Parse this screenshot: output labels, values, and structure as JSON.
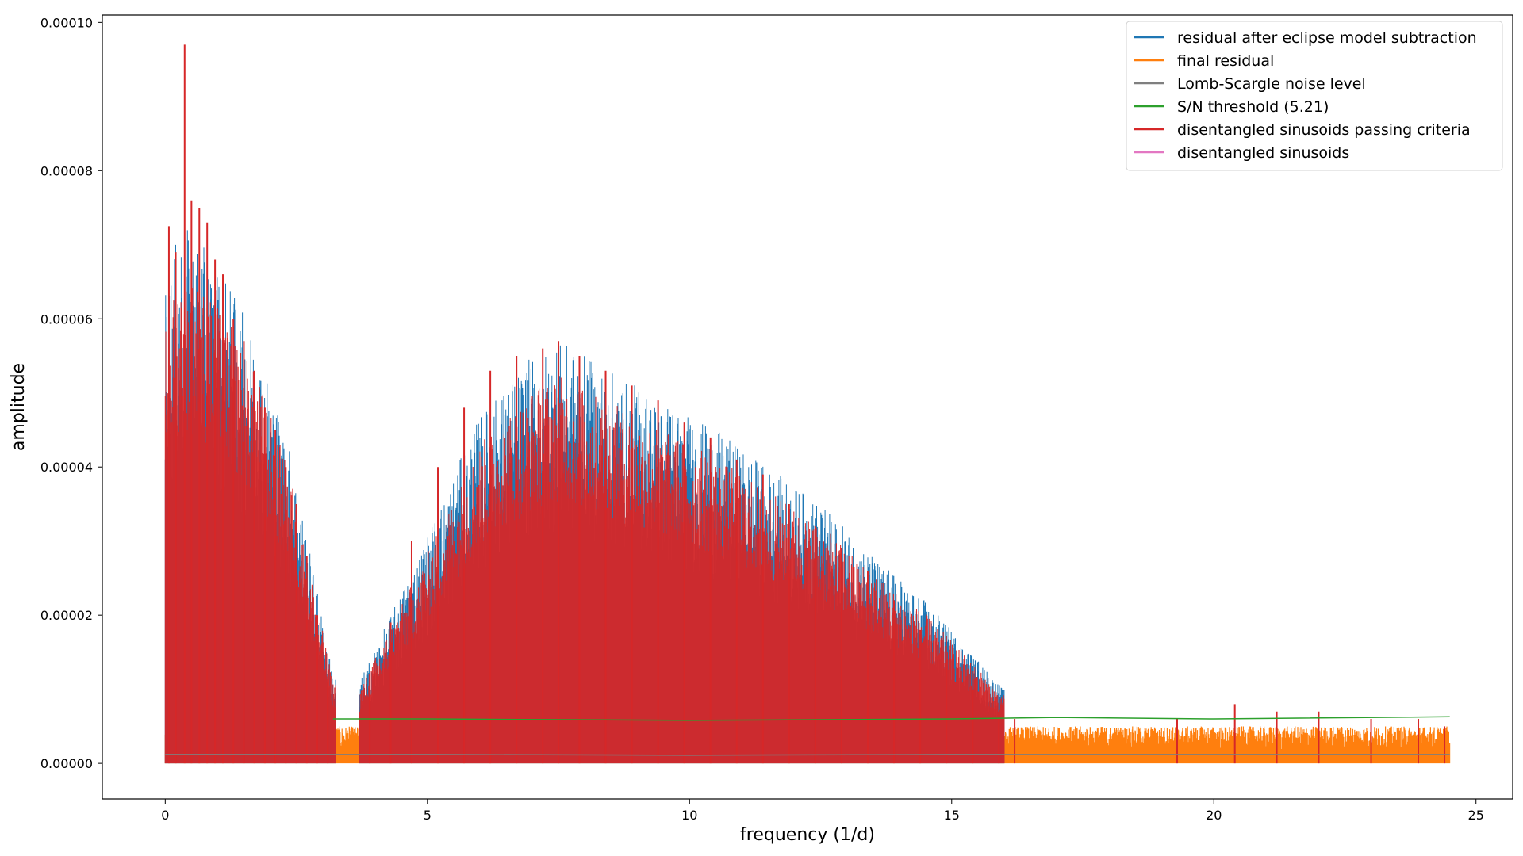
{
  "chart_data": {
    "type": "line",
    "title": "",
    "xlabel": "frequency (1/d)",
    "ylabel": "amplitude",
    "xlim": [
      -1.2,
      25.7
    ],
    "ylim": [
      -4.8e-06,
      0.000101
    ],
    "xticks": [
      0,
      5,
      10,
      15,
      20,
      25
    ],
    "xtick_labels": [
      "0",
      "5",
      "10",
      "15",
      "20",
      "25"
    ],
    "yticks": [
      0,
      2e-05,
      4e-05,
      6e-05,
      8e-05,
      0.0001
    ],
    "ytick_labels": [
      "0.00000",
      "0.00002",
      "0.00004",
      "0.00006",
      "0.00008",
      "0.00010"
    ],
    "grid": false,
    "legend_position": "upper right",
    "series": [
      {
        "name": "residual after eclipse model subtraction",
        "color": "#1f77b4",
        "envelope_x": [
          0,
          0.3,
          0.7,
          1.2,
          1.8,
          2.4,
          3.2,
          3.7,
          4.3,
          5.0,
          6.0,
          7.0,
          7.5,
          8.5,
          9.5,
          10.5,
          11.5,
          12.5,
          13.5,
          14.5,
          15.5,
          16.0
        ],
        "envelope_y": [
          6.4e-05,
          7.3e-05,
          7e-05,
          6.5e-05,
          5.6e-05,
          4.2e-05,
          1.2e-05,
          1.1e-05,
          2e-05,
          3.1e-05,
          4.7e-05,
          5.5e-05,
          5.7e-05,
          5.3e-05,
          4.9e-05,
          4.5e-05,
          4e-05,
          3.5e-05,
          2.8e-05,
          2.2e-05,
          1.4e-05,
          1e-05
        ]
      },
      {
        "name": "final residual",
        "color": "#ff7f0e",
        "x_range": [
          0,
          24.5
        ],
        "typical_max": 5e-06
      },
      {
        "name": "Lomb-Scargle noise level",
        "color": "#7f7f7f",
        "x": [
          0,
          3.2,
          5,
          10,
          15,
          20,
          24.5
        ],
        "y": [
          1.2e-06,
          1.2e-06,
          1.2e-06,
          1.1e-06,
          1.2e-06,
          1.2e-06,
          1.2e-06
        ]
      },
      {
        "name": "S/N threshold (5.21)",
        "color": "#2ca02c",
        "x": [
          3.2,
          5,
          10,
          15,
          17,
          20,
          24.5
        ],
        "y": [
          6e-06,
          6e-06,
          5.8e-06,
          6e-06,
          6.2e-06,
          6e-06,
          6.3e-06
        ]
      },
      {
        "name": "disentangled sinusoids passing criteria",
        "color": "#d62728",
        "peaks": [
          [
            0.07,
            7.25e-05
          ],
          [
            0.2,
            6.9e-05
          ],
          [
            0.37,
            9.7e-05
          ],
          [
            0.5,
            7.6e-05
          ],
          [
            0.65,
            7.5e-05
          ],
          [
            0.8,
            7.3e-05
          ],
          [
            0.95,
            6.8e-05
          ],
          [
            1.1,
            6.6e-05
          ],
          [
            1.3,
            6e-05
          ],
          [
            1.5,
            5.7e-05
          ],
          [
            1.7,
            5.3e-05
          ],
          [
            1.9,
            4.8e-05
          ],
          [
            2.1,
            4.5e-05
          ],
          [
            2.3,
            4e-05
          ],
          [
            2.5,
            3.5e-05
          ],
          [
            2.7,
            2.8e-05
          ],
          [
            2.9,
            2e-05
          ],
          [
            3.1,
            1.1e-05
          ],
          [
            3.9,
            1e-05
          ],
          [
            4.3,
            1.9e-05
          ],
          [
            4.7,
            3e-05
          ],
          [
            5.2,
            4e-05
          ],
          [
            5.7,
            4.8e-05
          ],
          [
            6.2,
            5.3e-05
          ],
          [
            6.7,
            5.5e-05
          ],
          [
            7.2,
            5.6e-05
          ],
          [
            7.5,
            5.7e-05
          ],
          [
            7.9,
            5.5e-05
          ],
          [
            8.4,
            5.3e-05
          ],
          [
            8.9,
            5.1e-05
          ],
          [
            9.4,
            4.9e-05
          ],
          [
            9.9,
            4.6e-05
          ],
          [
            10.4,
            4.4e-05
          ],
          [
            10.9,
            4.1e-05
          ],
          [
            11.4,
            3.9e-05
          ],
          [
            11.9,
            3.5e-05
          ],
          [
            12.4,
            3.2e-05
          ],
          [
            12.9,
            2.9e-05
          ],
          [
            13.4,
            2.6e-05
          ],
          [
            13.9,
            2.2e-05
          ],
          [
            14.4,
            1.8e-05
          ],
          [
            14.9,
            1.4e-05
          ],
          [
            15.4,
            1e-05
          ],
          [
            15.9,
            7e-06
          ],
          [
            16.2,
            6e-06
          ],
          [
            19.3,
            6e-06
          ],
          [
            20.4,
            8e-06
          ],
          [
            21.2,
            7e-06
          ],
          [
            22.0,
            7e-06
          ],
          [
            23.0,
            6e-06
          ],
          [
            23.9,
            6e-06
          ],
          [
            24.4,
            5e-06
          ]
        ]
      },
      {
        "name": "disentangled sinusoids",
        "color": "#e377c2"
      }
    ]
  }
}
